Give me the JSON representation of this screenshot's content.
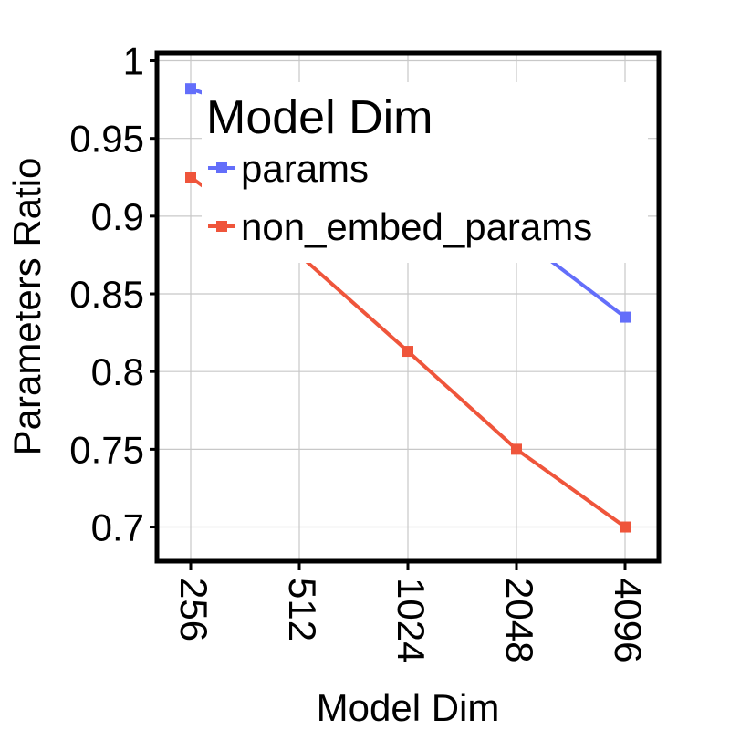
{
  "chart_data": {
    "type": "line",
    "title": "",
    "xlabel": "Model Dim",
    "ylabel": "Parameters Ratio",
    "categories": [
      "256",
      "512",
      "1024",
      "2048",
      "4096"
    ],
    "ylim": [
      0.678,
      1.005
    ],
    "yticks": [
      0.7,
      0.75,
      0.8,
      0.85,
      0.9,
      0.95,
      1
    ],
    "ytick_labels": [
      "0.7",
      "0.75",
      "0.8",
      "0.85",
      "0.9",
      "0.95",
      "1"
    ],
    "grid": true,
    "legend": {
      "title": "Model Dim",
      "placement": "top-right"
    },
    "series": [
      {
        "name": "params",
        "color": "#636efa",
        "values": [
          0.982,
          0.958,
          0.93,
          0.888,
          0.835
        ]
      },
      {
        "name": "non_embed_params",
        "color": "#ef553b",
        "values": [
          0.925,
          0.875,
          0.813,
          0.75,
          0.7
        ]
      }
    ]
  }
}
